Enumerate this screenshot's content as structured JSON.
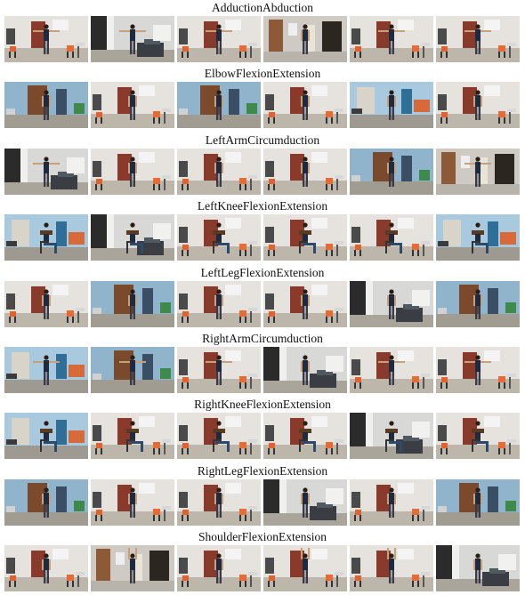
{
  "sections": [
    {
      "label": "AdductionAbduction",
      "frames": [
        {
          "scene": "office",
          "pose": "arms-out"
        },
        {
          "scene": "corridor",
          "pose": "arms-out"
        },
        {
          "scene": "office",
          "pose": "arms-out"
        },
        {
          "scene": "hall",
          "pose": "arms-down"
        },
        {
          "scene": "office",
          "pose": "arms-out"
        },
        {
          "scene": "office",
          "pose": "arms-out"
        }
      ]
    },
    {
      "label": "ElbowFlexionExtension",
      "frames": [
        {
          "scene": "wardrobe",
          "pose": "arms-down"
        },
        {
          "scene": "office",
          "pose": "arms-down"
        },
        {
          "scene": "wardrobe",
          "pose": "arms-down"
        },
        {
          "scene": "office",
          "pose": "arms-down"
        },
        {
          "scene": "blue",
          "pose": "arms-down"
        },
        {
          "scene": "office",
          "pose": "arms-down"
        }
      ]
    },
    {
      "label": "LeftArmCircumduction",
      "frames": [
        {
          "scene": "corridor",
          "pose": "arms-out"
        },
        {
          "scene": "office",
          "pose": "arms-down"
        },
        {
          "scene": "office",
          "pose": "arms-down"
        },
        {
          "scene": "office",
          "pose": "arms-down"
        },
        {
          "scene": "wardrobe",
          "pose": "arms-down"
        },
        {
          "scene": "hall",
          "pose": "arms-out"
        }
      ]
    },
    {
      "label": "LeftKneeFlexionExtension",
      "frames": [
        {
          "scene": "blue",
          "pose": "sitting"
        },
        {
          "scene": "corridor",
          "pose": "sitting"
        },
        {
          "scene": "office",
          "pose": "sitting"
        },
        {
          "scene": "office",
          "pose": "sitting"
        },
        {
          "scene": "office",
          "pose": "sitting"
        },
        {
          "scene": "blue",
          "pose": "sitting"
        }
      ]
    },
    {
      "label": "LeftLegFlexionExtension",
      "frames": [
        {
          "scene": "office",
          "pose": "arms-down"
        },
        {
          "scene": "wardrobe",
          "pose": "arms-down"
        },
        {
          "scene": "office",
          "pose": "arms-down"
        },
        {
          "scene": "office",
          "pose": "arms-down"
        },
        {
          "scene": "corridor",
          "pose": "arms-down"
        },
        {
          "scene": "wardrobe",
          "pose": "arms-down"
        }
      ]
    },
    {
      "label": "RightArmCircumduction",
      "frames": [
        {
          "scene": "blue",
          "pose": "arms-out"
        },
        {
          "scene": "wardrobe",
          "pose": "arms-out"
        },
        {
          "scene": "office",
          "pose": "arms-out"
        },
        {
          "scene": "corridor",
          "pose": "arms-down"
        },
        {
          "scene": "office",
          "pose": "arms-out"
        },
        {
          "scene": "office",
          "pose": "arms-out"
        }
      ]
    },
    {
      "label": "RightKneeFlexionExtension",
      "frames": [
        {
          "scene": "blue",
          "pose": "sitting"
        },
        {
          "scene": "office",
          "pose": "sitting"
        },
        {
          "scene": "office",
          "pose": "sitting"
        },
        {
          "scene": "office",
          "pose": "sitting"
        },
        {
          "scene": "corridor",
          "pose": "sitting"
        },
        {
          "scene": "office",
          "pose": "sitting"
        }
      ]
    },
    {
      "label": "RightLegFlexionExtension",
      "frames": [
        {
          "scene": "wardrobe",
          "pose": "arms-down"
        },
        {
          "scene": "office",
          "pose": "arms-down"
        },
        {
          "scene": "office",
          "pose": "arms-down"
        },
        {
          "scene": "corridor",
          "pose": "arms-down"
        },
        {
          "scene": "office",
          "pose": "arms-down"
        },
        {
          "scene": "wardrobe",
          "pose": "arms-down"
        }
      ]
    },
    {
      "label": "ShoulderFlexionExtension",
      "frames": [
        {
          "scene": "office",
          "pose": "arms-down"
        },
        {
          "scene": "hall",
          "pose": "arms-up"
        },
        {
          "scene": "office",
          "pose": "arms-down"
        },
        {
          "scene": "office",
          "pose": "arms-up"
        },
        {
          "scene": "office",
          "pose": "arms-up"
        },
        {
          "scene": "corridor",
          "pose": "arms-down"
        }
      ]
    }
  ]
}
